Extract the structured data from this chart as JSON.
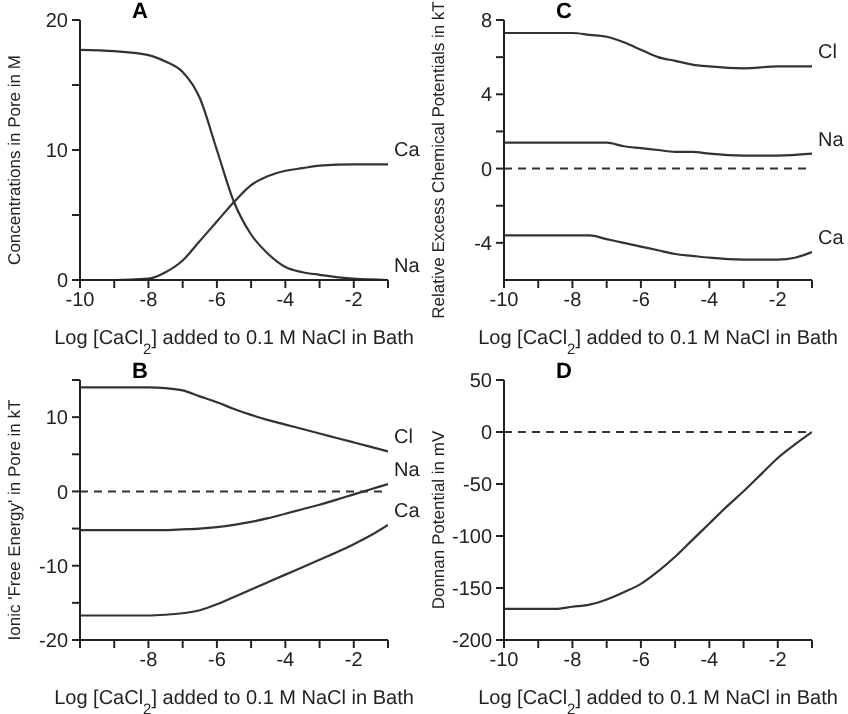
{
  "chart_data": [
    {
      "type": "line",
      "title": "A",
      "xlabel": "Log [CaCl$_{2}$] added to 0.1 M NaCl in Bath",
      "ylabel": "Concentrations in Pore in M",
      "xlim": [
        -10,
        -1
      ],
      "xticks": [
        -10,
        {
          "value": -9,
          "label": null
        },
        -8,
        {
          "value": -7,
          "label": null
        },
        -6,
        {
          "value": -5,
          "label": null
        },
        -4,
        {
          "value": -3,
          "label": null
        },
        -2,
        {
          "value": -1,
          "label": null
        }
      ],
      "ylim": [
        0,
        20
      ],
      "yticks": [
        0,
        {
          "value": 5,
          "label": null
        },
        10,
        {
          "value": 15,
          "label": null
        },
        20
      ],
      "marker": "none",
      "series": [
        {
          "name": "Na",
          "color": "#333333",
          "x": [
            -10,
            -9,
            -8,
            -7.5,
            -7,
            -6.5,
            -6,
            -5.5,
            -5,
            -4.5,
            -4,
            -3.5,
            -3,
            -2,
            -1
          ],
          "values": [
            17.7,
            17.6,
            17.3,
            16.8,
            16,
            14,
            10,
            6,
            3.5,
            2,
            1,
            0.6,
            0.4,
            0.1,
            0
          ]
        },
        {
          "name": "Ca",
          "color": "#333333",
          "x": [
            -10,
            -9,
            -8,
            -7.5,
            -7,
            -6.5,
            -6,
            -5.5,
            -5,
            -4.5,
            -4,
            -3.5,
            -3,
            -2,
            -1
          ],
          "values": [
            0,
            0,
            0.1,
            0.6,
            1.5,
            3,
            4.5,
            6,
            7.3,
            8,
            8.4,
            8.6,
            8.8,
            8.9,
            8.9
          ]
        }
      ]
    },
    {
      "type": "line",
      "title": "C",
      "xlabel": "Log [CaCl$_{2}$] added to 0.1 M NaCl in Bath",
      "ylabel": "Relative Excess Chemical Potentials in kT",
      "xlim": [
        -10,
        -1
      ],
      "xticks": [
        -10,
        {
          "value": -9,
          "label": null
        },
        -8,
        {
          "value": -7,
          "label": null
        },
        -6,
        {
          "value": -5,
          "label": null
        },
        -4,
        {
          "value": -3,
          "label": null
        },
        -2,
        {
          "value": -1,
          "label": null
        }
      ],
      "ylim": [
        -6,
        8
      ],
      "yticks": [
        -4,
        {
          "value": -2,
          "label": null
        },
        0,
        {
          "value": 2,
          "label": null
        },
        4,
        {
          "value": 6,
          "label": null
        },
        8
      ],
      "marker": "none",
      "ref_lines": [
        {
          "axis": "y",
          "value": 0,
          "line_style": "dashed",
          "color": "#333333"
        }
      ],
      "series": [
        {
          "name": "Cl",
          "color": "#333333",
          "x": [
            -10,
            -9,
            -8,
            -7.5,
            -7,
            -6.5,
            -6,
            -5.5,
            -5,
            -4.5,
            -4,
            -3,
            -2,
            -1
          ],
          "values": [
            7.3,
            7.3,
            7.3,
            7.2,
            7.1,
            6.8,
            6.4,
            6,
            5.8,
            5.6,
            5.5,
            5.4,
            5.5,
            5.5
          ]
        },
        {
          "name": "Na",
          "color": "#333333",
          "x": [
            -10,
            -9,
            -8,
            -7,
            -6.5,
            -6,
            -5.5,
            -5,
            -4.5,
            -4,
            -3,
            -2,
            -1
          ],
          "values": [
            1.4,
            1.4,
            1.4,
            1.4,
            1.2,
            1.1,
            1,
            0.9,
            0.9,
            0.8,
            0.7,
            0.7,
            0.8
          ]
        },
        {
          "name": "Ca",
          "color": "#333333",
          "x": [
            -10,
            -9,
            -8,
            -7.5,
            -7,
            -6.5,
            -6,
            -5.5,
            -5,
            -4.5,
            -4,
            -3,
            -2.5,
            -2,
            -1.5,
            -1
          ],
          "values": [
            -3.6,
            -3.6,
            -3.6,
            -3.6,
            -3.8,
            -4,
            -4.2,
            -4.4,
            -4.6,
            -4.7,
            -4.8,
            -4.9,
            -4.9,
            -4.9,
            -4.8,
            -4.5
          ]
        }
      ]
    },
    {
      "type": "line",
      "title": "B",
      "xlabel": "Log [CaCl$_{2}$] added to 0.1 M NaCl in Bath",
      "ylabel": "Ionic 'Free Energy' in Pore in kT",
      "xlim": [
        -10,
        -1
      ],
      "xticks": [
        {
          "value": -10,
          "label": null
        },
        {
          "value": -9,
          "label": null
        },
        -8,
        {
          "value": -7,
          "label": null
        },
        -6,
        {
          "value": -5,
          "label": null
        },
        -4,
        {
          "value": -3,
          "label": null
        },
        -2,
        {
          "value": -1,
          "label": null
        }
      ],
      "ylim": [
        -20,
        15
      ],
      "yticks": [
        -20,
        {
          "value": -15,
          "label": null
        },
        -10,
        {
          "value": -5,
          "label": null
        },
        0,
        {
          "value": 5,
          "label": null
        },
        10,
        {
          "value": 15,
          "label": null
        }
      ],
      "marker": "none",
      "ref_lines": [
        {
          "axis": "y",
          "value": 0,
          "line_style": "dashed",
          "color": "#333333"
        }
      ],
      "series": [
        {
          "name": "Cl",
          "color": "#333333",
          "x": [
            -10,
            -9,
            -8,
            -7.5,
            -7,
            -6.5,
            -6,
            -5.5,
            -5,
            -4.5,
            -4,
            -3.5,
            -3,
            -2.5,
            -2,
            -1.5,
            -1
          ],
          "values": [
            14,
            14,
            14,
            13.9,
            13.6,
            12.8,
            12,
            11.1,
            10.3,
            9.6,
            9,
            8.4,
            7.8,
            7.2,
            6.6,
            6,
            5.4
          ]
        },
        {
          "name": "Na",
          "color": "#333333",
          "x": [
            -10,
            -9,
            -8,
            -7.5,
            -7,
            -6.5,
            -6,
            -5.5,
            -5,
            -4.5,
            -4,
            -3.5,
            -3,
            -2.5,
            -2,
            -1.5,
            -1
          ],
          "values": [
            -5.2,
            -5.2,
            -5.2,
            -5.2,
            -5.1,
            -5,
            -4.8,
            -4.5,
            -4.1,
            -3.6,
            -3,
            -2.4,
            -1.8,
            -1.1,
            -0.4,
            0.3,
            1
          ]
        },
        {
          "name": "Ca",
          "color": "#333333",
          "x": [
            -10,
            -9,
            -8,
            -7.5,
            -7,
            -6.5,
            -6,
            -5.5,
            -5,
            -4.5,
            -4,
            -3.5,
            -3,
            -2.5,
            -2,
            -1.5,
            -1
          ],
          "values": [
            -16.7,
            -16.7,
            -16.7,
            -16.6,
            -16.4,
            -16,
            -15.2,
            -14.2,
            -13.2,
            -12.2,
            -11.2,
            -10.2,
            -9.2,
            -8.2,
            -7.1,
            -5.9,
            -4.5
          ]
        }
      ]
    },
    {
      "type": "line",
      "title": "D",
      "xlabel": "Log [CaCl$_{2}$] added to 0.1 M NaCl in Bath",
      "ylabel": "Donnan Potential in mV",
      "xlim": [
        -10,
        -1
      ],
      "xticks": [
        -10,
        {
          "value": -9,
          "label": null
        },
        -8,
        {
          "value": -7,
          "label": null
        },
        -6,
        {
          "value": -5,
          "label": null
        },
        -4,
        {
          "value": -3,
          "label": null
        },
        -2,
        {
          "value": -1,
          "label": null
        }
      ],
      "ylim": [
        -200,
        50
      ],
      "yticks": [
        -200,
        -150,
        -100,
        -50,
        0,
        50
      ],
      "marker": "none",
      "ref_lines": [
        {
          "axis": "y",
          "value": 0,
          "line_style": "dashed",
          "color": "#333333"
        }
      ],
      "series": [
        {
          "color": "#333333",
          "x": [
            -10,
            -9,
            -8.5,
            -8,
            -7.5,
            -7,
            -6.5,
            -6,
            -5.5,
            -5,
            -4.5,
            -4,
            -3.5,
            -3,
            -2.5,
            -2,
            -1.5,
            -1
          ],
          "values": [
            -170,
            -170,
            -170,
            -168,
            -166,
            -161,
            -154,
            -146,
            -134,
            -120,
            -104,
            -88,
            -72,
            -57,
            -41,
            -25,
            -12,
            0
          ]
        }
      ]
    }
  ]
}
